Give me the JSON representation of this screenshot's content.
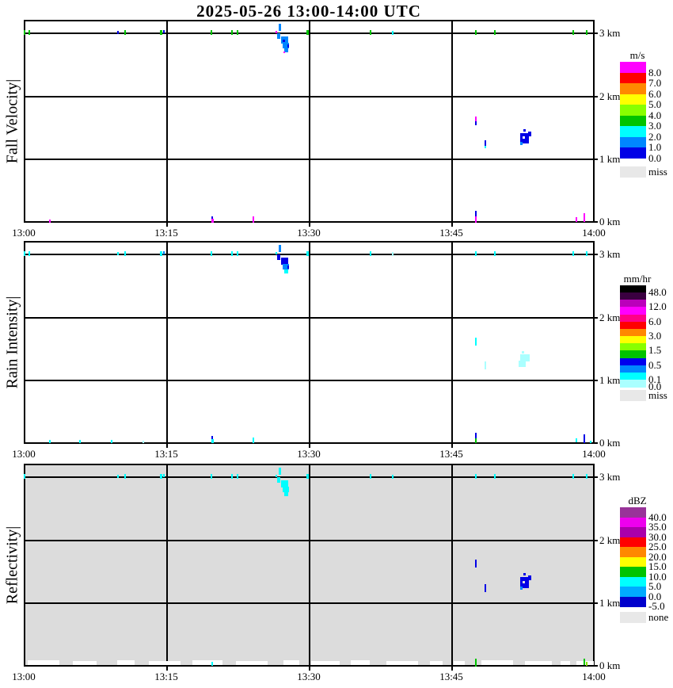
{
  "title": "2025-05-26  13:00-14:00 UTC",
  "x_tick_labels": [
    "13:00",
    "13:15",
    "13:30",
    "13:45",
    "14:00"
  ],
  "y_tick_labels": [
    "3 km",
    "2 km",
    "1 km",
    "0 km"
  ],
  "palette": {
    "G": "#00C300",
    "C": "#00FFFF",
    "P": "#AAFFFF",
    "B": "#0000E6",
    "D": "#0087FF",
    "M": "#FF00FF",
    "W": "#FFFFFF",
    "Y": "#88E400",
    "E": "#DCDCDC"
  },
  "chart_data": [
    {
      "type": "heatmap",
      "ylabel": "Fall Velocity|",
      "unit": "m/s",
      "x_range": [
        "13:00",
        "14:00"
      ],
      "y_range_km": [
        0,
        3.2
      ],
      "grid": "on",
      "legend_position": "right",
      "legend": {
        "title": "m/s",
        "bands": [
          [
            "#FF00FF",
            "8.0"
          ],
          [
            "#FF0000",
            "7.0"
          ],
          [
            "#FF8800",
            "6.0"
          ],
          [
            "#FFFF00",
            "5.0"
          ],
          [
            "#88FF00",
            "4.0"
          ],
          [
            "#00C300",
            "3.0"
          ],
          [
            "#00FFFF",
            "2.0"
          ],
          [
            "#0087FF",
            "1.0"
          ],
          [
            "#0000E6",
            "0.0"
          ]
        ],
        "extra": {
          "color": "#E8E8E8",
          "label": "miss"
        }
      },
      "points": [
        [
          0,
          13,
          2,
          6,
          "G"
        ],
        [
          6,
          13,
          2,
          6,
          "G"
        ],
        [
          118,
          14,
          2,
          4,
          "B"
        ],
        [
          127,
          13,
          2,
          6,
          "G"
        ],
        [
          172,
          13,
          3,
          6,
          "G"
        ],
        [
          176,
          13,
          2,
          4,
          "B"
        ],
        [
          236,
          13,
          2,
          6,
          "G"
        ],
        [
          262,
          13,
          2,
          6,
          "G"
        ],
        [
          269,
          13,
          2,
          6,
          "G"
        ],
        [
          357,
          13,
          3,
          6,
          "G"
        ],
        [
          437,
          13,
          2,
          6,
          "G"
        ],
        [
          465,
          14,
          2,
          5,
          "C"
        ],
        [
          570,
          13,
          2,
          6,
          "G"
        ],
        [
          594,
          13,
          2,
          6,
          "G"
        ],
        [
          693,
          13,
          2,
          6,
          "G"
        ],
        [
          710,
          13,
          2,
          6,
          "G"
        ],
        [
          322,
          5,
          3,
          9,
          "D"
        ],
        [
          318,
          14,
          2,
          3,
          "M"
        ],
        [
          320,
          17,
          4,
          7,
          "D"
        ],
        [
          325,
          21,
          9,
          9,
          "D"
        ],
        [
          327,
          25,
          3,
          3,
          "B"
        ],
        [
          327,
          29,
          8,
          7,
          "D"
        ],
        [
          333,
          31,
          2,
          4,
          "B"
        ],
        [
          329,
          36,
          5,
          5,
          "D"
        ],
        [
          328,
          40,
          2,
          2,
          "M"
        ],
        [
          570,
          122,
          2,
          6,
          "M"
        ],
        [
          570,
          128,
          2,
          5,
          "B"
        ],
        [
          582,
          152,
          2,
          9,
          "B"
        ],
        [
          582,
          159,
          2,
          3,
          "C"
        ],
        [
          631,
          138,
          3,
          3,
          "B"
        ],
        [
          627,
          143,
          11,
          13,
          "B"
        ],
        [
          637,
          141,
          4,
          6,
          "B"
        ],
        [
          630,
          147,
          3,
          3,
          "W"
        ],
        [
          627,
          154,
          3,
          4,
          "D"
        ],
        [
          32,
          252,
          2,
          4,
          "M"
        ],
        [
          237,
          248,
          2,
          3,
          "B"
        ],
        [
          237,
          251,
          3,
          5,
          "M"
        ],
        [
          289,
          248,
          2,
          8,
          "M"
        ],
        [
          570,
          241,
          2,
          7,
          "B"
        ],
        [
          570,
          248,
          2,
          8,
          "M"
        ],
        [
          697,
          249,
          2,
          6,
          "M"
        ],
        [
          707,
          244,
          2,
          11,
          "M"
        ]
      ]
    },
    {
      "type": "heatmap",
      "ylabel": "Rain Intensity|",
      "unit": "mm/hr",
      "x_range": [
        "13:00",
        "14:00"
      ],
      "y_range_km": [
        0,
        3.2
      ],
      "grid": "on",
      "legend_position": "right",
      "legend": {
        "title": "mm/hr",
        "bands": [
          [
            "#000000",
            "48.0"
          ],
          [
            "#3A0040",
            null
          ],
          [
            "#BB00BB",
            "12.0"
          ],
          [
            "#FF00FF",
            null
          ],
          [
            "#FF0088",
            "6.0"
          ],
          [
            "#FF0000",
            null
          ],
          [
            "#FF8800",
            "3.0"
          ],
          [
            "#FFFF00",
            null
          ],
          [
            "#88FF00",
            "1.5"
          ],
          [
            "#00C300",
            null
          ],
          [
            "#0000EE",
            "0.5"
          ],
          [
            "#0087FF",
            null
          ],
          [
            "#00FFFF",
            "0.1"
          ],
          [
            "#AAFFFF",
            "0.0"
          ]
        ],
        "extra": {
          "color": "#E8E8E8",
          "label": "miss"
        }
      },
      "points": [
        [
          0,
          13,
          2,
          6,
          "C"
        ],
        [
          6,
          13,
          2,
          6,
          "C"
        ],
        [
          118,
          14,
          2,
          4,
          "C"
        ],
        [
          127,
          13,
          2,
          6,
          "C"
        ],
        [
          172,
          13,
          3,
          6,
          "C"
        ],
        [
          176,
          13,
          2,
          4,
          "D"
        ],
        [
          236,
          13,
          2,
          6,
          "C"
        ],
        [
          262,
          13,
          2,
          6,
          "C"
        ],
        [
          269,
          13,
          2,
          6,
          "C"
        ],
        [
          357,
          13,
          3,
          6,
          "C"
        ],
        [
          437,
          13,
          2,
          6,
          "C"
        ],
        [
          465,
          14,
          2,
          5,
          "P"
        ],
        [
          570,
          13,
          2,
          6,
          "C"
        ],
        [
          594,
          13,
          2,
          6,
          "C"
        ],
        [
          693,
          13,
          2,
          6,
          "C"
        ],
        [
          710,
          13,
          2,
          6,
          "C"
        ],
        [
          322,
          5,
          3,
          9,
          "D"
        ],
        [
          318,
          14,
          2,
          3,
          "C"
        ],
        [
          320,
          17,
          4,
          7,
          "B"
        ],
        [
          325,
          21,
          9,
          9,
          "B"
        ],
        [
          327,
          29,
          8,
          7,
          "D"
        ],
        [
          333,
          31,
          2,
          4,
          "B"
        ],
        [
          329,
          36,
          5,
          5,
          "C"
        ],
        [
          570,
          122,
          2,
          10,
          "C"
        ],
        [
          582,
          152,
          2,
          10,
          "P"
        ],
        [
          629,
          139,
          3,
          3,
          "P"
        ],
        [
          627,
          143,
          12,
          9,
          "P"
        ],
        [
          625,
          151,
          9,
          8,
          "P"
        ],
        [
          32,
          251,
          2,
          4,
          "C"
        ],
        [
          70,
          251,
          2,
          4,
          "C"
        ],
        [
          110,
          251,
          2,
          4,
          "C"
        ],
        [
          150,
          252,
          2,
          3,
          "P"
        ],
        [
          237,
          246,
          2,
          4,
          "B"
        ],
        [
          237,
          250,
          3,
          5,
          "C"
        ],
        [
          289,
          248,
          2,
          7,
          "C"
        ],
        [
          570,
          242,
          2,
          7,
          "B"
        ],
        [
          570,
          249,
          2,
          6,
          "G"
        ],
        [
          697,
          249,
          2,
          5,
          "C"
        ],
        [
          707,
          244,
          2,
          11,
          "B"
        ],
        [
          715,
          252,
          2,
          3,
          "C"
        ]
      ]
    },
    {
      "type": "heatmap",
      "ylabel": "Reflectivity|",
      "unit": "dBZ",
      "x_range": [
        "13:00",
        "14:00"
      ],
      "y_range_km": [
        0,
        3.2
      ],
      "grid": "on",
      "background": "#DCDCDC",
      "legend_position": "right",
      "legend": {
        "title": "dBZ",
        "bands": [
          [
            "#993399",
            "40.0"
          ],
          [
            "#EE00EE",
            "35.0"
          ],
          [
            "#AA00AA",
            "30.0"
          ],
          [
            "#FF0000",
            "25.0"
          ],
          [
            "#FF8800",
            "20.0"
          ],
          [
            "#FFFF00",
            "15.0"
          ],
          [
            "#00C300",
            "10.0"
          ],
          [
            "#00FFFF",
            "5.0"
          ],
          [
            "#00AAFF",
            "0.0"
          ],
          [
            "#0000CC",
            "-5.0"
          ]
        ],
        "extra": {
          "color": "#E8E8E8",
          "label": "none"
        }
      },
      "points": [
        [
          0,
          13,
          2,
          6,
          "C"
        ],
        [
          118,
          14,
          2,
          4,
          "C"
        ],
        [
          127,
          13,
          2,
          6,
          "C"
        ],
        [
          172,
          13,
          3,
          6,
          "C"
        ],
        [
          176,
          13,
          2,
          4,
          "C"
        ],
        [
          236,
          13,
          2,
          6,
          "C"
        ],
        [
          262,
          13,
          2,
          6,
          "C"
        ],
        [
          269,
          13,
          2,
          6,
          "C"
        ],
        [
          357,
          13,
          3,
          6,
          "C"
        ],
        [
          437,
          13,
          2,
          6,
          "C"
        ],
        [
          465,
          14,
          2,
          5,
          "C"
        ],
        [
          570,
          13,
          2,
          6,
          "C"
        ],
        [
          594,
          13,
          2,
          6,
          "C"
        ],
        [
          693,
          13,
          2,
          6,
          "C"
        ],
        [
          710,
          13,
          2,
          6,
          "C"
        ],
        [
          322,
          5,
          3,
          9,
          "C"
        ],
        [
          318,
          14,
          2,
          3,
          "C"
        ],
        [
          320,
          17,
          4,
          7,
          "C"
        ],
        [
          325,
          21,
          9,
          9,
          "C"
        ],
        [
          327,
          29,
          8,
          7,
          "C"
        ],
        [
          329,
          36,
          5,
          5,
          "C"
        ],
        [
          570,
          121,
          2,
          10,
          "B"
        ],
        [
          582,
          152,
          2,
          10,
          "B"
        ],
        [
          631,
          138,
          3,
          3,
          "B"
        ],
        [
          627,
          143,
          11,
          14,
          "B"
        ],
        [
          637,
          141,
          4,
          6,
          "B"
        ],
        [
          630,
          148,
          3,
          3,
          "E"
        ],
        [
          627,
          155,
          3,
          4,
          "D"
        ],
        [
          5,
          248,
          40,
          6,
          "W"
        ],
        [
          62,
          249,
          30,
          5,
          "W"
        ],
        [
          118,
          248,
          22,
          6,
          "W"
        ],
        [
          158,
          249,
          40,
          5,
          "W"
        ],
        [
          213,
          248,
          38,
          6,
          "W"
        ],
        [
          268,
          249,
          40,
          5,
          "W"
        ],
        [
          328,
          248,
          20,
          6,
          "W"
        ],
        [
          363,
          249,
          36,
          5,
          "W"
        ],
        [
          413,
          248,
          24,
          6,
          "W"
        ],
        [
          458,
          249,
          40,
          5,
          "W"
        ],
        [
          513,
          249,
          16,
          5,
          "W"
        ],
        [
          543,
          249,
          14,
          5,
          "W"
        ],
        [
          578,
          248,
          40,
          6,
          "W"
        ],
        [
          633,
          249,
          34,
          5,
          "W"
        ],
        [
          678,
          249,
          12,
          5,
          "W"
        ],
        [
          698,
          249,
          22,
          5,
          "W"
        ],
        [
          237,
          250,
          2,
          5,
          "C"
        ],
        [
          570,
          246,
          2,
          10,
          "G"
        ],
        [
          707,
          246,
          2,
          8,
          "G"
        ],
        [
          710,
          250,
          2,
          5,
          "Y"
        ]
      ]
    }
  ]
}
